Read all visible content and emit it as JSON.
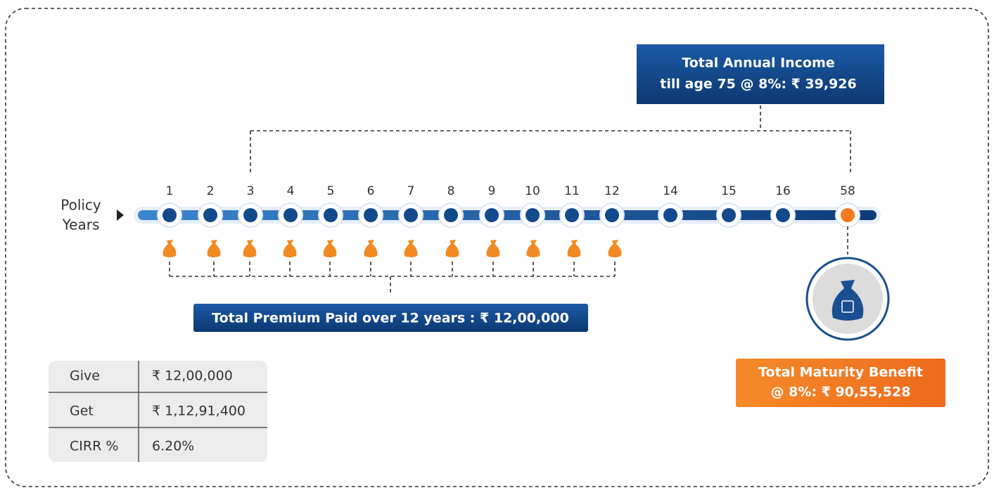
{
  "income": {
    "lines": [
      "Total Annual Income",
      "till age 75 @ 8%: ₹ 39,926"
    ]
  },
  "axis_label": {
    "lines": [
      "Policy",
      "Years"
    ]
  },
  "years": [
    "1",
    "2",
    "3",
    "4",
    "5",
    "6",
    "7",
    "8",
    "9",
    "10",
    "11",
    "12",
    "14",
    "15",
    "16",
    "58"
  ],
  "premium": {
    "text": "Total Premium Paid over 12 years : ₹ 12,00,000"
  },
  "maturity": {
    "lines": [
      "Total Maturity Benefit",
      "@ 8%: ₹ 90,55,528"
    ]
  },
  "table": {
    "rows": [
      [
        "Give",
        "₹ 12,00,000"
      ],
      [
        "Get",
        "₹ 1,12,91,400"
      ],
      [
        "CIRR %",
        "6.20%"
      ]
    ]
  }
}
